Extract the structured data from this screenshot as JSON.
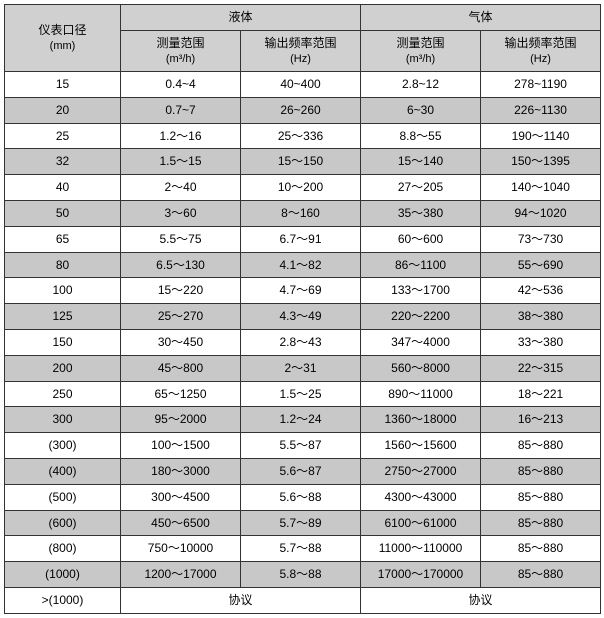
{
  "table": {
    "header": {
      "diameter": "仪表口径",
      "diameter_unit": "(mm)",
      "liquid": "液体",
      "gas": "气体",
      "meas_range": "测量范围",
      "meas_unit": "(m³/h)",
      "freq_range": "输出频率范围",
      "freq_unit": "(Hz)"
    },
    "rows": [
      {
        "d": "15",
        "lm": "0.4~4",
        "lf": "40~400",
        "gm": "2.8~12",
        "gf": "278~1190",
        "shade": false
      },
      {
        "d": "20",
        "lm": "0.7~7",
        "lf": "26~260",
        "gm": "6~30",
        "gf": "226~1130",
        "shade": true
      },
      {
        "d": "25",
        "lm": "1.2～16",
        "lf": "25～336",
        "gm": "8.8～55",
        "gf": "190～1140",
        "shade": false
      },
      {
        "d": "32",
        "lm": "1.5～15",
        "lf": "15～150",
        "gm": "15～140",
        "gf": "150～1395",
        "shade": true
      },
      {
        "d": "40",
        "lm": "2～40",
        "lf": "10～200",
        "gm": "27～205",
        "gf": "140～1040",
        "shade": false
      },
      {
        "d": "50",
        "lm": "3～60",
        "lf": "8～160",
        "gm": "35～380",
        "gf": "94～1020",
        "shade": true
      },
      {
        "d": "65",
        "lm": "5.5～75",
        "lf": "6.7～91",
        "gm": "60～600",
        "gf": "73～730",
        "shade": false
      },
      {
        "d": "80",
        "lm": "6.5～130",
        "lf": "4.1～82",
        "gm": "86～1100",
        "gf": "55～690",
        "shade": true
      },
      {
        "d": "100",
        "lm": "15～220",
        "lf": "4.7～69",
        "gm": "133～1700",
        "gf": "42～536",
        "shade": false
      },
      {
        "d": "125",
        "lm": "25～270",
        "lf": "4.3～49",
        "gm": "220～2200",
        "gf": "38～380",
        "shade": true
      },
      {
        "d": "150",
        "lm": "30～450",
        "lf": "2.8～43",
        "gm": "347～4000",
        "gf": "33～380",
        "shade": false
      },
      {
        "d": "200",
        "lm": "45～800",
        "lf": "2～31",
        "gm": "560～8000",
        "gf": "22～315",
        "shade": true
      },
      {
        "d": "250",
        "lm": "65～1250",
        "lf": "1.5～25",
        "gm": "890～11000",
        "gf": "18～221",
        "shade": false
      },
      {
        "d": "300",
        "lm": "95～2000",
        "lf": "1.2～24",
        "gm": "1360～18000",
        "gf": "16～213",
        "shade": true
      },
      {
        "d": "(300)",
        "lm": "100～1500",
        "lf": "5.5～87",
        "gm": "1560～15600",
        "gf": "85～880",
        "shade": false
      },
      {
        "d": "(400)",
        "lm": "180～3000",
        "lf": "5.6～87",
        "gm": "2750～27000",
        "gf": "85～880",
        "shade": true
      },
      {
        "d": "(500)",
        "lm": "300～4500",
        "lf": "5.6～88",
        "gm": "4300～43000",
        "gf": "85～880",
        "shade": false
      },
      {
        "d": "(600)",
        "lm": "450～6500",
        "lf": "5.7～89",
        "gm": "6100～61000",
        "gf": "85～880",
        "shade": true
      },
      {
        "d": "(800)",
        "lm": "750～10000",
        "lf": "5.7～88",
        "gm": "11000～110000",
        "gf": "85～880",
        "shade": false
      },
      {
        "d": "(1000)",
        "lm": "1200～17000",
        "lf": "5.8～88",
        "gm": "17000～170000",
        "gf": "85～880",
        "shade": true
      },
      {
        "d": ">(1000)",
        "lm": "协议",
        "lf": "",
        "gm": "协议",
        "gf": "",
        "shade": false,
        "merge": true
      }
    ]
  }
}
